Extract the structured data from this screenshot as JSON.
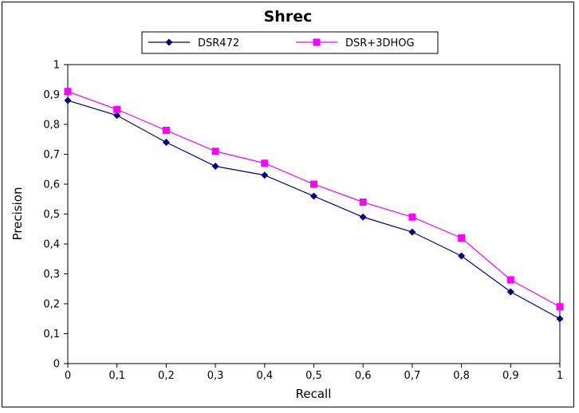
{
  "chart_data": {
    "type": "line",
    "title": "Shrec",
    "xlabel": "Recall",
    "ylabel": "Precision",
    "x": [
      0,
      0.1,
      0.2,
      0.3,
      0.4,
      0.5,
      0.6,
      0.7,
      0.8,
      0.9,
      1
    ],
    "x_tick_labels": [
      "0",
      "0,1",
      "0,2",
      "0,3",
      "0,4",
      "0,5",
      "0,6",
      "0,7",
      "0,8",
      "0,9",
      "1"
    ],
    "y_tick_labels": [
      "0",
      "0,1",
      "0,2",
      "0,3",
      "0,4",
      "0,5",
      "0,6",
      "0,7",
      "0,8",
      "0,9",
      "1"
    ],
    "xlim": [
      0,
      1
    ],
    "ylim": [
      0,
      1
    ],
    "grid": false,
    "legend_position": "top-center",
    "series": [
      {
        "name": "DSR472",
        "color": "#000080",
        "marker": "diamond",
        "values": [
          0.88,
          0.83,
          0.74,
          0.66,
          0.63,
          0.56,
          0.49,
          0.44,
          0.36,
          0.24,
          0.15
        ]
      },
      {
        "name": "DSR+3DHOG",
        "color": "#ff00ff",
        "marker": "square",
        "values": [
          0.91,
          0.85,
          0.78,
          0.71,
          0.67,
          0.6,
          0.54,
          0.49,
          0.42,
          0.28,
          0.19
        ]
      }
    ]
  }
}
